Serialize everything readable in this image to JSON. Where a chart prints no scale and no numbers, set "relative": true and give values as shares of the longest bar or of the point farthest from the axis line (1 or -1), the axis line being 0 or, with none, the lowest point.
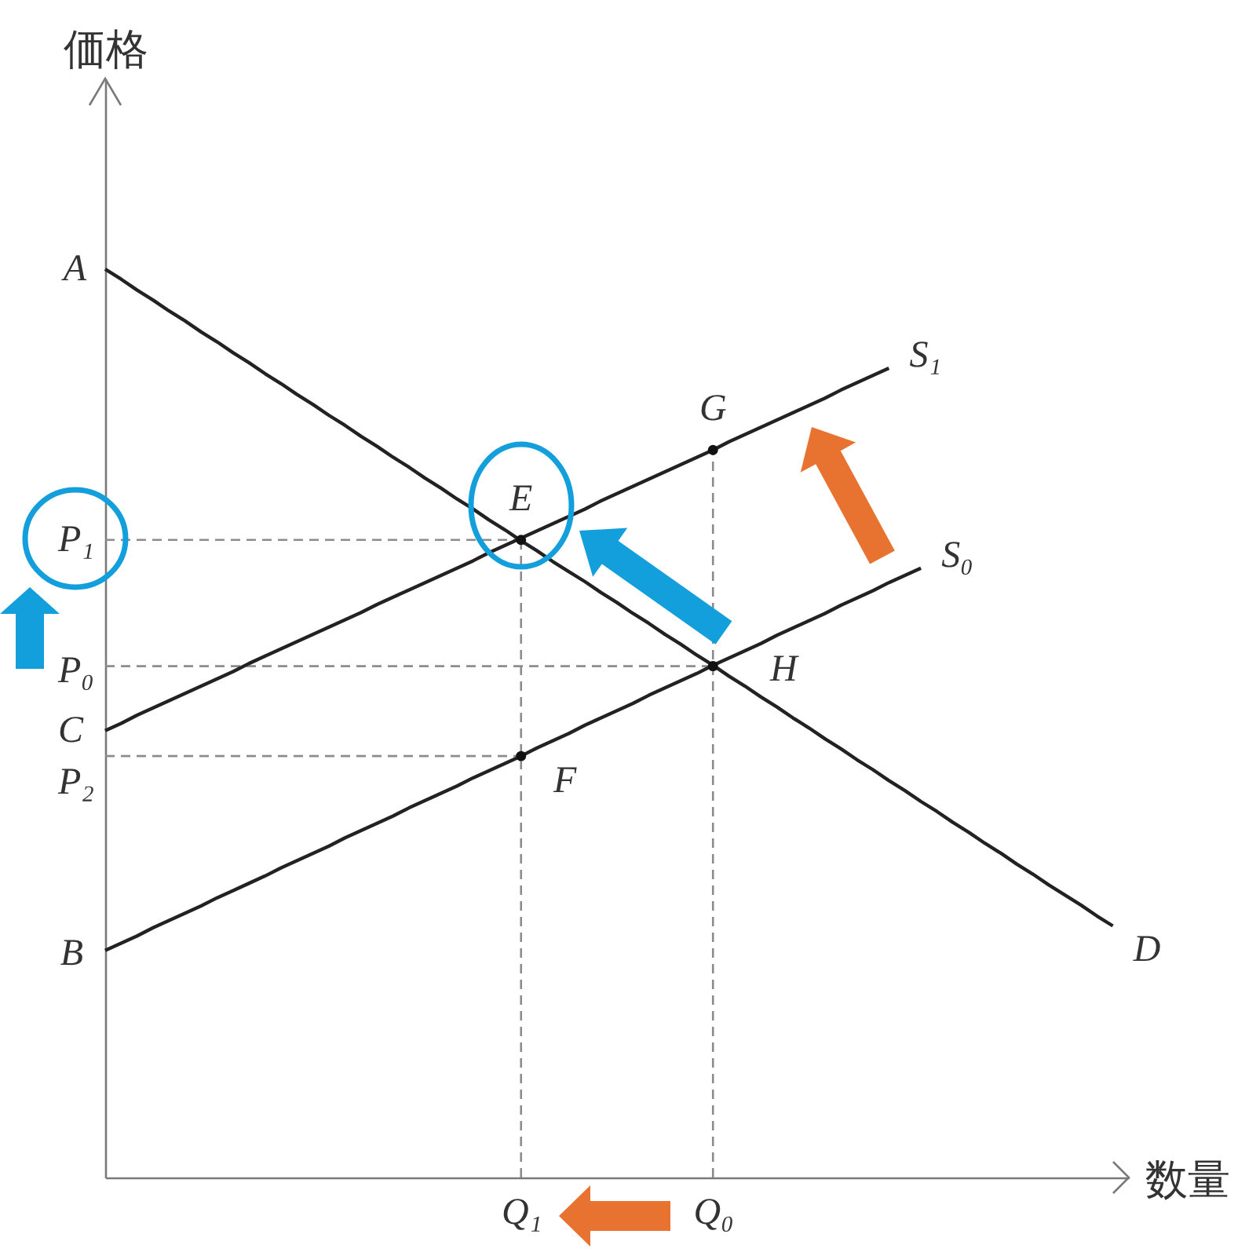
{
  "chart_data": {
    "type": "line",
    "xlabel": "数量",
    "ylabel": "価格",
    "relative": true,
    "legend": false,
    "categories": [
      null,
      null,
      null,
      null,
      null,
      null,
      null,
      null,
      null,
      null,
      null,
      null,
      null,
      null,
      null,
      null,
      null,
      null,
      null,
      null,
      null,
      null,
      null,
      null,
      null,
      null,
      "Q₁",
      null,
      null,
      null,
      null,
      null,
      null,
      null,
      null,
      null,
      null,
      null,
      "Q₀",
      null,
      null,
      null,
      null,
      null,
      null,
      null,
      null,
      null,
      null,
      null,
      null,
      null,
      null,
      null,
      null,
      null,
      null,
      null,
      null,
      null,
      null,
      null,
      null,
      null,
      null
    ],
    "series": [
      {
        "name": "D",
        "color": "#222222",
        "values": [
          1,
          0.989,
          0.977,
          0.966,
          0.954,
          0.943,
          0.931,
          0.92,
          0.908,
          0.897,
          0.885,
          0.874,
          0.862,
          0.851,
          0.839,
          0.828,
          0.816,
          0.805,
          0.793,
          0.782,
          0.77,
          0.759,
          0.747,
          0.736,
          0.724,
          0.713,
          0.701,
          0.69,
          0.678,
          0.667,
          0.656,
          0.644,
          0.633,
          0.621,
          0.61,
          0.598,
          0.587,
          0.575,
          0.564,
          0.552,
          0.541,
          0.529,
          0.518,
          0.506,
          0.495,
          0.483,
          0.472,
          0.46,
          0.449,
          0.437,
          0.426,
          0.414,
          0.403,
          0.391,
          0.38,
          0.368,
          0.357,
          0.345,
          0.334,
          0.322,
          0.311,
          0.3,
          0.288,
          0.277,
          null
        ]
      },
      {
        "name": "S₁",
        "color": "#222222",
        "values": [
          0.492,
          0.5,
          0.509,
          0.517,
          0.525,
          0.533,
          0.541,
          0.549,
          0.557,
          0.566,
          0.574,
          0.582,
          0.59,
          0.598,
          0.606,
          0.614,
          0.622,
          0.631,
          0.639,
          0.647,
          0.655,
          0.663,
          0.671,
          0.679,
          0.688,
          0.696,
          0.704,
          0.712,
          0.72,
          0.728,
          0.736,
          0.745,
          0.753,
          0.761,
          0.769,
          0.777,
          0.785,
          0.793,
          0.801,
          0.81,
          0.818,
          0.826,
          0.834,
          0.842,
          0.85,
          0.858,
          0.867,
          0.875,
          0.883,
          0.891,
          null,
          null,
          null,
          null,
          null,
          null,
          null,
          null,
          null,
          null,
          null,
          null,
          null,
          null,
          null
        ]
      },
      {
        "name": "S₀",
        "color": "#222222",
        "values": [
          0.25,
          0.258,
          0.266,
          0.275,
          0.283,
          0.291,
          0.299,
          0.308,
          0.316,
          0.324,
          0.332,
          0.341,
          0.349,
          0.357,
          0.365,
          0.374,
          0.382,
          0.39,
          0.398,
          0.407,
          0.415,
          0.423,
          0.431,
          0.44,
          0.448,
          0.456,
          0.464,
          0.473,
          0.481,
          0.489,
          0.498,
          0.506,
          0.514,
          0.522,
          0.531,
          0.539,
          0.547,
          0.555,
          0.564,
          0.572,
          0.58,
          0.588,
          0.597,
          0.605,
          0.613,
          0.621,
          0.63,
          0.638,
          0.646,
          0.655,
          0.663,
          0.671,
          null,
          null,
          null,
          null,
          null,
          null,
          null,
          null,
          null,
          null,
          null,
          null,
          null
        ]
      },
      {
        "type": "scatter",
        "marker": "circle",
        "color": "#111111",
        "x": [
          "Q₁",
          "Q₁",
          "Q₀",
          "Q₀"
        ],
        "values": [
          0.702,
          0.464,
          0.801,
          0.563
        ]
      }
    ],
    "ref_lines": [
      {
        "axis": "y",
        "value": 0.702,
        "label": "P₁",
        "color": "#8c8c8c",
        "line_style": "dashed"
      },
      {
        "axis": "y",
        "value": 0.563,
        "label": "P₀",
        "color": "#8c8c8c",
        "line_style": "dashed"
      },
      {
        "axis": "y",
        "value": 0.464,
        "label": "P₂",
        "color": "#8c8c8c",
        "line_style": "dashed"
      },
      {
        "axis": "x",
        "value": "Q₁",
        "color": "#8c8c8c",
        "line_style": "dashed"
      },
      {
        "axis": "x",
        "value": "Q₀",
        "color": "#8c8c8c",
        "line_style": "dashed"
      }
    ],
    "annotations": [
      "A",
      "C",
      "B",
      {
        "text": "E",
        "x": "Q₁",
        "y": 0.702
      },
      {
        "text": "F",
        "x": "Q₁",
        "y": 0.464
      },
      {
        "text": "G",
        "x": "Q₀",
        "y": 0.801
      },
      {
        "text": "H",
        "x": "Q₀",
        "y": 0.563
      }
    ]
  }
}
